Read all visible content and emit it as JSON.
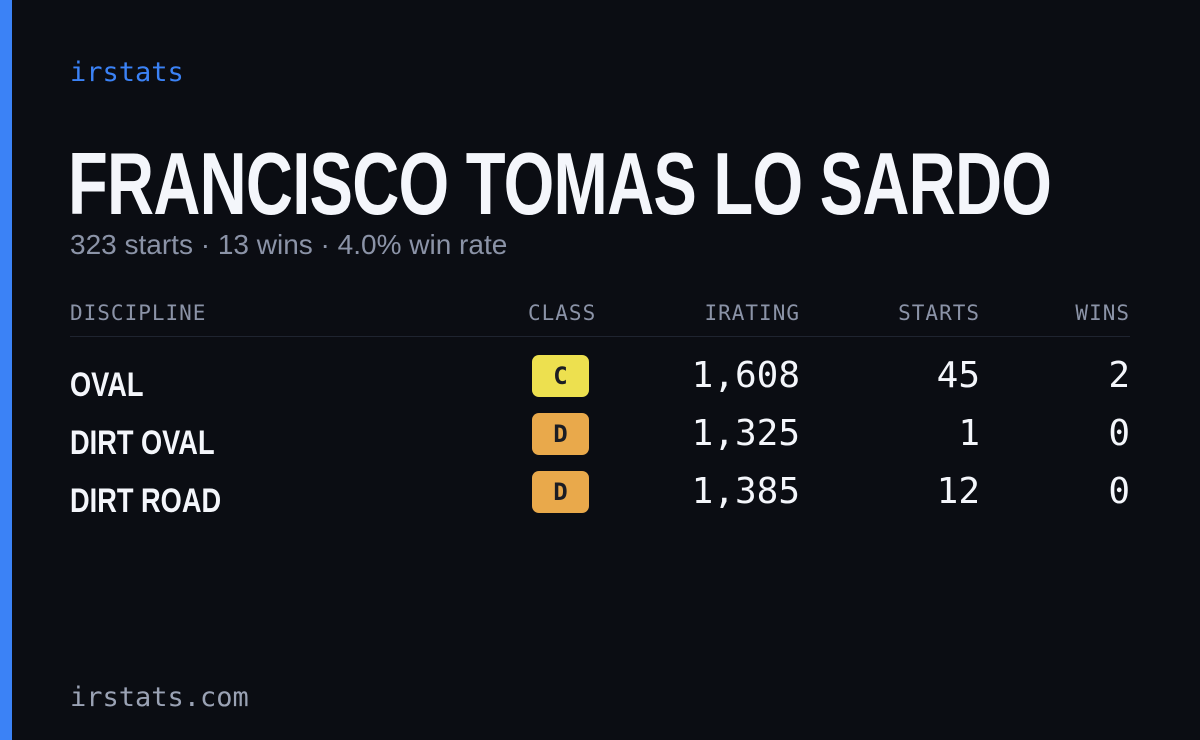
{
  "brand": "irstats",
  "driver": {
    "name": "FRANCISCO TOMAS LO SARDO",
    "summary": "323 starts · 13 wins · 4.0% win rate"
  },
  "table": {
    "headers": {
      "discipline": "DISCIPLINE",
      "class": "CLASS",
      "irating": "IRATING",
      "starts": "STARTS",
      "wins": "WINS"
    },
    "rows": [
      {
        "discipline": "OVAL",
        "class": "C",
        "class_color": "#ede04f",
        "irating": "1,608",
        "starts": "45",
        "wins": "2"
      },
      {
        "discipline": "DIRT OVAL",
        "class": "D",
        "class_color": "#e9a94b",
        "irating": "1,325",
        "starts": "1",
        "wins": "0"
      },
      {
        "discipline": "DIRT ROAD",
        "class": "D",
        "class_color": "#e9a94b",
        "irating": "1,385",
        "starts": "12",
        "wins": "0"
      }
    ]
  },
  "footer": {
    "url": "irstats.com"
  },
  "colors": {
    "background": "#0b0d13",
    "accent": "#3b82f6",
    "text": "#f4f6fb",
    "muted": "#8b93a7"
  }
}
